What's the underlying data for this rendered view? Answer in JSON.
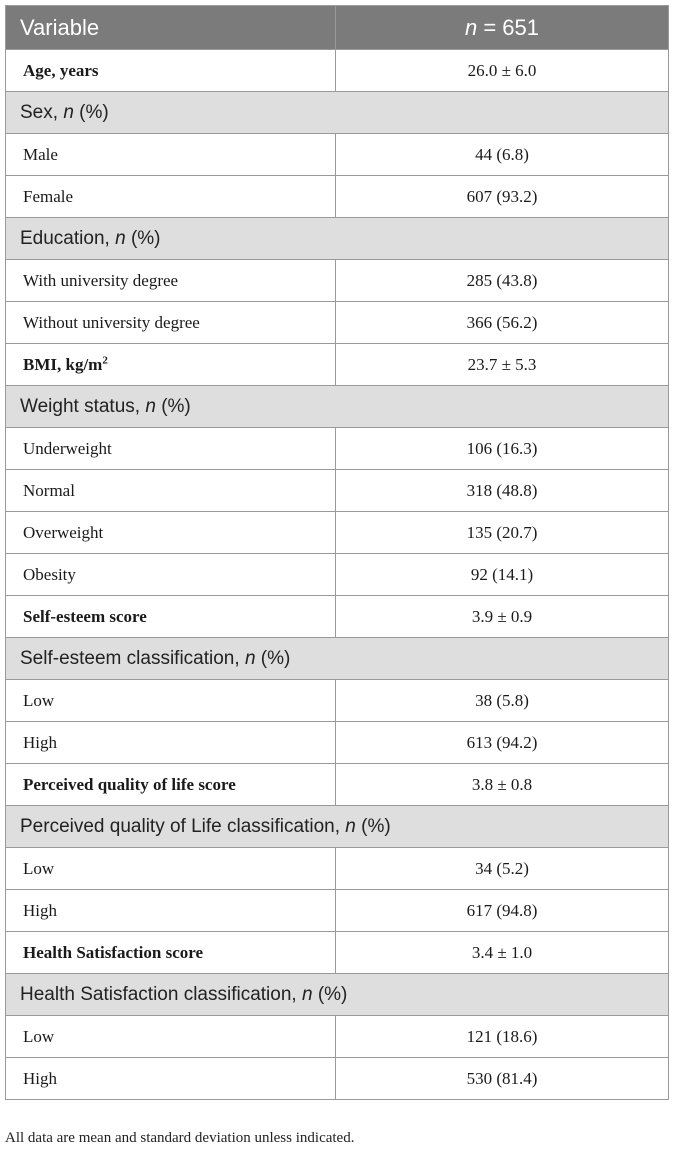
{
  "header": {
    "variable": "Variable",
    "n_italic": "n",
    "n_value": "= 651"
  },
  "rows": {
    "age": {
      "label": "Age, years",
      "value": "26.0 ± 6.0"
    },
    "sex": {
      "label": "Sex,",
      "suffix": "(%)"
    },
    "male": {
      "label": "Male",
      "value": "44 (6.8)"
    },
    "female": {
      "label": "Female",
      "value": "607 (93.2)"
    },
    "education": {
      "label": "Education,",
      "suffix": "(%)"
    },
    "with_degree": {
      "label": "With university degree",
      "value": "285 (43.8)"
    },
    "without_degree": {
      "label": "Without university degree",
      "value": "366 (56.2)"
    },
    "bmi": {
      "label": "BMI, kg/m",
      "sup": "2",
      "value": "23.7 ± 5.3"
    },
    "weight_status": {
      "label": "Weight status,",
      "suffix": "(%)"
    },
    "underweight": {
      "label": "Underweight",
      "value": "106 (16.3)"
    },
    "normal": {
      "label": "Normal",
      "value": "318 (48.8)"
    },
    "overweight": {
      "label": "Overweight",
      "value": "135 (20.7)"
    },
    "obesity": {
      "label": "Obesity",
      "value": "92 (14.1)"
    },
    "se_score": {
      "label": "Self-esteem score",
      "value": "3.9 ± 0.9"
    },
    "se_class": {
      "label": "Self-esteem classification,",
      "suffix": "(%)"
    },
    "se_low": {
      "label": "Low",
      "value": "38 (5.8)"
    },
    "se_high": {
      "label": "High",
      "value": "613 (94.2)"
    },
    "qol_score": {
      "label": "Perceived quality of life score",
      "value": "3.8 ± 0.8"
    },
    "qol_class": {
      "label": "Perceived quality of Life classification,",
      "suffix": "(%)"
    },
    "qol_low": {
      "label": "Low",
      "value": "34 (5.2)"
    },
    "qol_high": {
      "label": "High",
      "value": "617 (94.8)"
    },
    "hs_score": {
      "label": "Health Satisfaction score",
      "value": "3.4 ± 1.0"
    },
    "hs_class": {
      "label": "Health Satisfaction classification,",
      "suffix": "(%)"
    },
    "hs_low": {
      "label": "Low",
      "value": "121 (18.6)"
    },
    "hs_high": {
      "label": "High",
      "value": "530 (81.4)"
    }
  },
  "n_symbol": "n",
  "footnote": "All data are mean and standard deviation unless indicated."
}
